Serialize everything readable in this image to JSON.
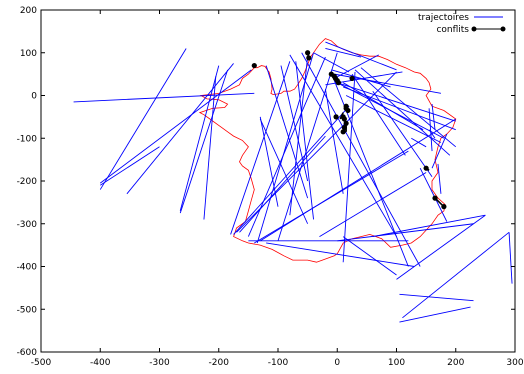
{
  "chart_data": {
    "type": "line",
    "xlim": [
      -500,
      300
    ],
    "ylim": [
      -600,
      200
    ],
    "xticks": [
      -500,
      -400,
      -300,
      -200,
      -100,
      0,
      100,
      200,
      300
    ],
    "yticks": [
      -600,
      -500,
      -400,
      -300,
      -200,
      -100,
      0,
      100,
      200
    ],
    "xtick_labels": [
      "-500",
      "-400",
      "-300",
      "-200",
      "-100",
      "0",
      "100",
      "200",
      "300"
    ],
    "ytick_labels": [
      "-600",
      "-500",
      "-400",
      "-300",
      "-200",
      "-100",
      "0",
      "100",
      "200"
    ],
    "grid": false,
    "legend_position": "top-right",
    "legend": [
      {
        "label": "trajectoires",
        "color": "#0000ff",
        "marker": "none"
      },
      {
        "label": "conflits",
        "color": "#000000",
        "marker": "circle"
      }
    ],
    "coastline": {
      "color": "#ff0000",
      "points": [
        [
          -140,
          65
        ],
        [
          -135,
          65
        ],
        [
          -128,
          70
        ],
        [
          -122,
          68
        ],
        [
          -118,
          60
        ],
        [
          -115,
          55
        ],
        [
          -112,
          40
        ],
        [
          -110,
          15
        ],
        [
          -112,
          5
        ],
        [
          -108,
          2
        ],
        [
          -95,
          5
        ],
        [
          -90,
          10
        ],
        [
          -80,
          10
        ],
        [
          -72,
          15
        ],
        [
          -67,
          25
        ],
        [
          -60,
          40
        ],
        [
          -55,
          55
        ],
        [
          -50,
          72
        ],
        [
          -45,
          90
        ],
        [
          -40,
          100
        ],
        [
          -30,
          120
        ],
        [
          -20,
          133
        ],
        [
          -10,
          128
        ],
        [
          0,
          115
        ],
        [
          10,
          108
        ],
        [
          25,
          100
        ],
        [
          40,
          95
        ],
        [
          55,
          92
        ],
        [
          70,
          92
        ],
        [
          85,
          84
        ],
        [
          100,
          73
        ],
        [
          115,
          65
        ],
        [
          130,
          55
        ],
        [
          140,
          52
        ],
        [
          150,
          40
        ],
        [
          155,
          30
        ],
        [
          158,
          15
        ],
        [
          150,
          0
        ],
        [
          160,
          -25
        ],
        [
          180,
          -35
        ],
        [
          200,
          -55
        ],
        [
          195,
          -75
        ],
        [
          185,
          -90
        ],
        [
          175,
          -100
        ],
        [
          170,
          -120
        ],
        [
          165,
          -150
        ],
        [
          170,
          -180
        ],
        [
          160,
          -200
        ],
        [
          160,
          -220
        ],
        [
          170,
          -240
        ],
        [
          182,
          -255
        ],
        [
          180,
          -270
        ],
        [
          170,
          -280
        ],
        [
          160,
          -300
        ],
        [
          140,
          -330
        ],
        [
          125,
          -345
        ],
        [
          110,
          -350
        ],
        [
          90,
          -355
        ],
        [
          75,
          -335
        ],
        [
          55,
          -325
        ],
        [
          40,
          -330
        ],
        [
          25,
          -335
        ],
        [
          10,
          -345
        ],
        [
          0,
          -370
        ],
        [
          -5,
          -375
        ],
        [
          -25,
          -385
        ],
        [
          -35,
          -390
        ],
        [
          -50,
          -385
        ],
        [
          -75,
          -385
        ],
        [
          -90,
          -375
        ],
        [
          -110,
          -360
        ],
        [
          -130,
          -350
        ],
        [
          -150,
          -345
        ],
        [
          -160,
          -340
        ],
        [
          -175,
          -330
        ],
        [
          -170,
          -310
        ],
        [
          -155,
          -295
        ],
        [
          -150,
          -270
        ],
        [
          -145,
          -245
        ],
        [
          -140,
          -220
        ],
        [
          -145,
          -195
        ],
        [
          -150,
          -175
        ],
        [
          -160,
          -165
        ],
        [
          -165,
          -155
        ],
        [
          -160,
          -140
        ],
        [
          -150,
          -120
        ],
        [
          -160,
          -105
        ],
        [
          -175,
          -95
        ],
        [
          -185,
          -85
        ],
        [
          -200,
          -70
        ],
        [
          -215,
          -55
        ],
        [
          -225,
          -45
        ],
        [
          -232,
          -40
        ],
        [
          -210,
          -30
        ],
        [
          -190,
          -28
        ],
        [
          -185,
          -20
        ],
        [
          -200,
          -10
        ],
        [
          -220,
          -8
        ],
        [
          -230,
          0
        ],
        [
          -200,
          5
        ],
        [
          -180,
          15
        ],
        [
          -165,
          25
        ],
        [
          -160,
          40
        ],
        [
          -150,
          50
        ],
        [
          -140,
          65
        ]
      ]
    },
    "series": [
      {
        "name": "trajectoires",
        "color": "#0000ff",
        "segments": [
          [
            [
              -445,
              -15
            ],
            [
              -140,
              5
            ]
          ],
          [
            [
              -400,
              -210
            ],
            [
              -300,
              -120
            ]
          ],
          [
            [
              -400,
              -220
            ],
            [
              -255,
              110
            ]
          ],
          [
            [
              -400,
              -205
            ],
            [
              -145,
              60
            ]
          ],
          [
            [
              -355,
              -230
            ],
            [
              -175,
              75
            ]
          ],
          [
            [
              -265,
              -270
            ],
            [
              -200,
              70
            ]
          ],
          [
            [
              -265,
              -275
            ],
            [
              -185,
              60
            ]
          ],
          [
            [
              -225,
              -290
            ],
            [
              -205,
              45
            ]
          ],
          [
            [
              -180,
              -325
            ],
            [
              -80,
              80
            ]
          ],
          [
            [
              -175,
              -325
            ],
            [
              20,
              -25
            ]
          ],
          [
            [
              -165,
              -320
            ],
            [
              -20,
              -95
            ]
          ],
          [
            [
              -170,
              -320
            ],
            [
              100,
              55
            ]
          ],
          [
            [
              -150,
              -330
            ],
            [
              -20,
              90
            ]
          ],
          [
            [
              -135,
              -345
            ],
            [
              -40,
              100
            ]
          ],
          [
            [
              -140,
              -345
            ],
            [
              120,
              -130
            ]
          ],
          [
            [
              -130,
              -340
            ],
            [
              200,
              -55
            ]
          ],
          [
            [
              -130,
              -50
            ],
            [
              -100,
              -260
            ]
          ],
          [
            [
              -130,
              -55
            ],
            [
              -50,
              -300
            ]
          ],
          [
            [
              -120,
              70
            ],
            [
              -50,
              -240
            ]
          ],
          [
            [
              -100,
              -340
            ],
            [
              0,
              100
            ]
          ],
          [
            [
              -95,
              70
            ],
            [
              -50,
              -200
            ]
          ],
          [
            [
              -80,
              95
            ],
            [
              100,
              -330
            ]
          ],
          [
            [
              -70,
              80
            ],
            [
              -40,
              -290
            ]
          ],
          [
            [
              -60,
              100
            ],
            [
              140,
              -400
            ]
          ],
          [
            [
              -50,
              90
            ],
            [
              -80,
              -280
            ]
          ],
          [
            [
              -40,
              100
            ],
            [
              20,
              55
            ]
          ],
          [
            [
              -20,
              110
            ],
            [
              40,
              90
            ]
          ],
          [
            [
              -20,
              125
            ],
            [
              100,
              60
            ]
          ],
          [
            [
              -20,
              15
            ],
            [
              10,
              -230
            ]
          ],
          [
            [
              -20,
              25
            ],
            [
              110,
              55
            ]
          ],
          [
            [
              -10,
              60
            ],
            [
              90,
              20
            ]
          ],
          [
            [
              -5,
              50
            ],
            [
              175,
              5
            ]
          ],
          [
            [
              -5,
              40
            ],
            [
              70,
              95
            ]
          ],
          [
            [
              -5,
              35
            ],
            [
              120,
              -400
            ]
          ],
          [
            [
              0,
              30
            ],
            [
              200,
              -60
            ]
          ],
          [
            [
              0,
              30
            ],
            [
              180,
              -100
            ]
          ],
          [
            [
              10,
              20
            ],
            [
              200,
              -80
            ]
          ],
          [
            [
              10,
              30
            ],
            [
              145,
              -80
            ]
          ],
          [
            [
              15,
              0
            ],
            [
              175,
              -110
            ]
          ],
          [
            [
              25,
              50
            ],
            [
              115,
              -140
            ]
          ],
          [
            [
              30,
              55
            ],
            [
              10,
              -390
            ]
          ],
          [
            [
              30,
              60
            ],
            [
              190,
              -140
            ]
          ],
          [
            [
              40,
              65
            ],
            [
              200,
              -120
            ]
          ],
          [
            [
              60,
              10
            ],
            [
              160,
              -190
            ]
          ],
          [
            [
              -30,
              -330
            ],
            [
              150,
              -180
            ]
          ],
          [
            [
              -150,
              -340
            ],
            [
              120,
              -340
            ]
          ],
          [
            [
              -120,
              -345
            ],
            [
              130,
              -400
            ]
          ],
          [
            [
              0,
              -340
            ],
            [
              230,
              -300
            ]
          ],
          [
            [
              10,
              -330
            ],
            [
              100,
              -420
            ]
          ],
          [
            [
              60,
              -330
            ],
            [
              250,
              -280
            ]
          ],
          [
            [
              100,
              -430
            ],
            [
              250,
              -280
            ]
          ],
          [
            [
              105,
              -465
            ],
            [
              230,
              -480
            ]
          ],
          [
            [
              105,
              -530
            ],
            [
              225,
              -495
            ]
          ],
          [
            [
              110,
              -520
            ],
            [
              290,
              -320
            ]
          ],
          [
            [
              290,
              -320
            ],
            [
              295,
              -440
            ]
          ],
          [
            [
              160,
              -170
            ],
            [
              185,
              -90
            ]
          ],
          [
            [
              150,
              -120
            ],
            [
              125,
              -100
            ]
          ],
          [
            [
              155,
              -80
            ],
            [
              165,
              -100
            ]
          ],
          [
            [
              160,
              -20
            ],
            [
              165,
              -80
            ]
          ],
          [
            [
              155,
              -30
            ],
            [
              160,
              -130
            ]
          ],
          [
            [
              140,
              -170
            ],
            [
              185,
              -295
            ]
          ],
          [
            [
              170,
              -160
            ],
            [
              175,
              -230
            ]
          ]
        ]
      },
      {
        "name": "conflits",
        "color": "#000000",
        "segments": [
          [
            [
              -140,
              70
            ],
            [
              -140,
              72
            ]
          ],
          [
            [
              -50,
              100
            ],
            [
              -48,
              85
            ]
          ],
          [
            [
              -10,
              50
            ],
            [
              -5,
              40
            ]
          ],
          [
            [
              0,
              35
            ],
            [
              0,
              25
            ]
          ],
          [
            [
              10,
              -40
            ],
            [
              5,
              -55
            ]
          ],
          [
            [
              15,
              -70
            ],
            [
              15,
              -85
            ]
          ],
          [
            [
              150,
              -170
            ],
            [
              155,
              -175
            ]
          ],
          [
            [
              165,
              -240
            ],
            [
              180,
              -260
            ]
          ]
        ],
        "points": [
          [
            -140,
            70
          ],
          [
            -50,
            100
          ],
          [
            -48,
            88
          ],
          [
            -10,
            50
          ],
          [
            -5,
            45
          ],
          [
            -3,
            40
          ],
          [
            0,
            35
          ],
          [
            2,
            30
          ],
          [
            25,
            40
          ],
          [
            15,
            -25
          ],
          [
            15,
            -30
          ],
          [
            18,
            -35
          ],
          [
            -2,
            -50
          ],
          [
            10,
            -50
          ],
          [
            12,
            -55
          ],
          [
            15,
            -65
          ],
          [
            12,
            -75
          ],
          [
            10,
            -85
          ],
          [
            150,
            -170
          ],
          [
            165,
            -240
          ],
          [
            180,
            -260
          ]
        ]
      }
    ]
  }
}
